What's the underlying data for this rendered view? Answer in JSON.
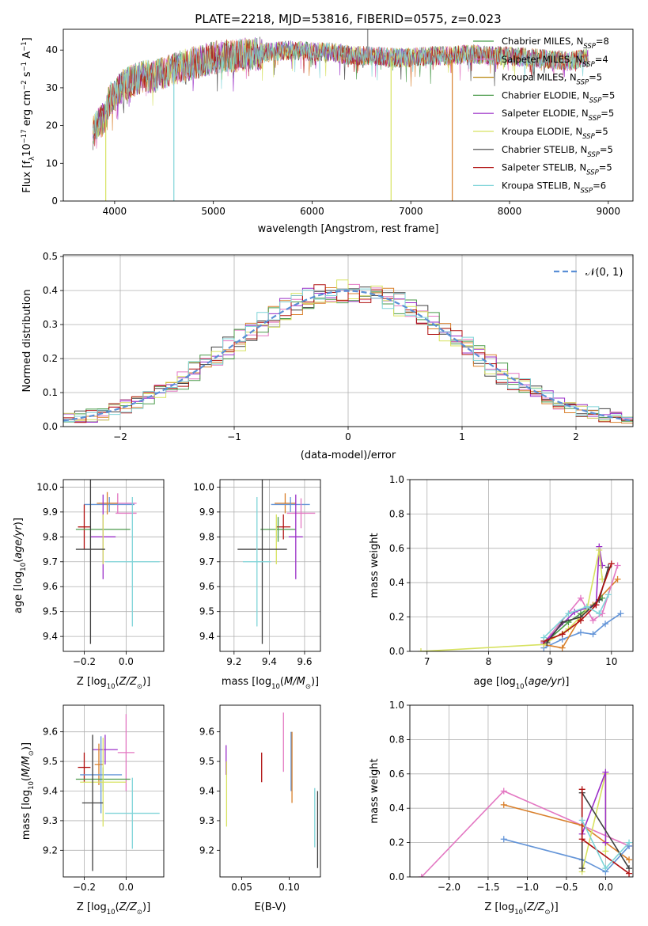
{
  "figure_title": "PLATE=2218, MJD=53816, FIBERID=0575, z=0.023",
  "palette": [
    "#7f7f7f",
    "#e377c2",
    "#d9802c",
    "#4a9a4a",
    "#9b30c8",
    "#d7e260",
    "#404040",
    "#b01010",
    "#7fd4d8",
    "#6495d8"
  ],
  "chart_data": [
    {
      "id": "spectrum",
      "type": "line",
      "xlabel": "wavelength [Angstrom, rest frame]",
      "ylabel": "Flux [f_λ10^-17 erg cm^-2 s^-1 A^-1]",
      "xlim": [
        3480,
        9250
      ],
      "ylim": [
        0,
        45.5
      ],
      "xticks": [
        4000,
        5000,
        6000,
        7000,
        8000,
        9000
      ],
      "yticks": [
        0,
        10,
        20,
        30,
        40
      ],
      "grid": false,
      "legend_position": "top-right",
      "legend": [
        {
          "label": "Chabrier MILES, N_SSP=8",
          "color": "#4a9a4a"
        },
        {
          "label": "Salpeter MILES, N_SSP=4",
          "color": "#e377c2"
        },
        {
          "label": "Kroupa MILES, N_SSP=5",
          "color": "#b8860b"
        },
        {
          "label": "Chabrier ELODIE, N_SSP=5",
          "color": "#4a9a4a"
        },
        {
          "label": "Salpeter ELODIE, N_SSP=5",
          "color": "#9b30c8"
        },
        {
          "label": "Kroupa ELODIE, N_SSP=5",
          "color": "#d7e260"
        },
        {
          "label": "Chabrier STELIB, N_SSP=5",
          "color": "#404040"
        },
        {
          "label": "Salpeter STELIB, N_SSP=5",
          "color": "#b01010"
        },
        {
          "label": "Kroupa STELIB, N_SSP=6",
          "color": "#7fd4d8"
        }
      ],
      "envelope": {
        "x": [
          3780,
          3850,
          3900,
          3950,
          4000,
          4100,
          4200,
          4300,
          4400,
          4500,
          4600,
          4800,
          5000,
          5200,
          5400,
          5600,
          5800,
          6000,
          6200,
          6400,
          6600,
          6800,
          7000,
          7200,
          7400,
          7600,
          7800,
          8000,
          8200,
          8400,
          8600,
          8800
        ],
        "y": [
          18,
          21,
          22,
          27,
          28,
          31,
          32,
          33,
          33,
          34,
          35,
          36.5,
          38,
          38.5,
          39,
          39.5,
          40,
          39.5,
          39.5,
          38.5,
          38.5,
          38,
          38,
          38.5,
          38.5,
          39,
          38.5,
          38.5,
          38,
          37.5,
          37,
          38
        ]
      },
      "dropouts": [
        {
          "x": 3910,
          "y": 0,
          "color": "#d7e260"
        },
        {
          "x": 4600,
          "y": 0,
          "color": "#7fd4d8"
        },
        {
          "x": 6800,
          "y": 0,
          "color": "#d7e260"
        },
        {
          "x": 7420,
          "y": 0,
          "color": "#d9802c"
        }
      ]
    },
    {
      "id": "residuals",
      "type": "histogram",
      "xlabel": "(data-model)/error",
      "ylabel": "Normed distribution",
      "xlim": [
        -2.5,
        2.5
      ],
      "ylim": [
        0,
        0.505
      ],
      "xticks": [
        -2,
        -1,
        0,
        1,
        2
      ],
      "yticks": [
        0.0,
        0.1,
        0.2,
        0.3,
        0.4,
        0.5
      ],
      "grid": true,
      "legend_position": "top-right",
      "legend": [
        {
          "label": "N(0,1)",
          "color": "#5b8fd6",
          "style": "dashed"
        }
      ],
      "normal_curve": {
        "mean": 0,
        "sigma": 1
      }
    },
    {
      "id": "age_vs_Z",
      "type": "errorbar",
      "xlabel": "Z [log10(Z/Z_sun)]",
      "ylabel": "age [log10(age/yr)]",
      "xlim": [
        -0.3,
        0.18
      ],
      "ylim": [
        9.34,
        10.03
      ],
      "xticks": [
        -0.2,
        0.0
      ],
      "xticklabels": [
        "−0.2",
        "0.0"
      ],
      "yticks": [
        9.4,
        9.5,
        9.6,
        9.7,
        9.8,
        9.9,
        10.0
      ],
      "grid": true,
      "points": [
        {
          "x": -0.04,
          "y": 9.935,
          "xerr": 0.09,
          "yerr": 0.04,
          "color": "#e377c2"
        },
        {
          "x": -0.08,
          "y": 9.93,
          "xerr": 0.12,
          "yerr": 0.03,
          "color": "#6495d8"
        },
        {
          "x": -0.09,
          "y": 9.935,
          "xerr": 0.05,
          "yerr": 0.045,
          "color": "#d9802c"
        },
        {
          "x": 0.0,
          "y": 9.895,
          "xerr": 0.05,
          "yerr": 0.0,
          "color": "#e377c2"
        },
        {
          "x": -0.2,
          "y": 9.84,
          "xerr": 0.03,
          "yerr": 0.09,
          "color": "#b01010"
        },
        {
          "x": -0.11,
          "y": 9.83,
          "xerr": 0.13,
          "yerr": 0.0,
          "color": "#4a9a4a"
        },
        {
          "x": -0.11,
          "y": 9.8,
          "xerr": 0.06,
          "yerr": 0.17,
          "color": "#9b30c8"
        },
        {
          "x": -0.11,
          "y": 9.79,
          "xerr": 0.0,
          "yerr": 0.1,
          "color": "#d7e260"
        },
        {
          "x": -0.17,
          "y": 9.75,
          "xerr": 0.07,
          "yerr": 0.38,
          "color": "#404040"
        },
        {
          "x": 0.03,
          "y": 9.7,
          "xerr": 0.13,
          "yerr": 0.26,
          "color": "#7fd4d8"
        }
      ]
    },
    {
      "id": "age_vs_mass",
      "type": "errorbar",
      "xlabel": "mass [log10(M/M_sun)]",
      "ylabel": "",
      "xlim": [
        9.12,
        9.69
      ],
      "ylim": [
        9.34,
        10.03
      ],
      "xticks": [
        9.2,
        9.4,
        9.6
      ],
      "yticks": [
        9.4,
        9.5,
        9.6,
        9.7,
        9.8,
        9.9,
        10.0
      ],
      "grid": true,
      "points": [
        {
          "x": 9.49,
          "y": 9.935,
          "xerr": 0.06,
          "yerr": 0.04,
          "color": "#d9802c"
        },
        {
          "x": 9.52,
          "y": 9.93,
          "xerr": 0.11,
          "yerr": 0.03,
          "color": "#6495d8"
        },
        {
          "x": 9.58,
          "y": 9.895,
          "xerr": 0.08,
          "yerr": 0.06,
          "color": "#e377c2"
        },
        {
          "x": 9.48,
          "y": 9.84,
          "xerr": 0.04,
          "yerr": 0.05,
          "color": "#b01010"
        },
        {
          "x": 9.45,
          "y": 9.83,
          "xerr": 0.1,
          "yerr": 0.05,
          "color": "#4a9a4a"
        },
        {
          "x": 9.55,
          "y": 9.8,
          "xerr": 0.04,
          "yerr": 0.17,
          "color": "#9b30c8"
        },
        {
          "x": 9.44,
          "y": 9.79,
          "xerr": 0.0,
          "yerr": 0.1,
          "color": "#d7e260"
        },
        {
          "x": 9.36,
          "y": 9.75,
          "xerr": 0.14,
          "yerr": 0.38,
          "color": "#404040"
        },
        {
          "x": 9.33,
          "y": 9.7,
          "xerr": 0.08,
          "yerr": 0.26,
          "color": "#7fd4d8"
        }
      ]
    },
    {
      "id": "weight_vs_age",
      "type": "line",
      "xlabel": "age [log10(age/yr)]",
      "ylabel": "mass weight",
      "xlim": [
        6.72,
        10.35
      ],
      "ylim": [
        0,
        1.0
      ],
      "xticks": [
        7,
        8,
        9,
        10
      ],
      "yticks": [
        0.0,
        0.2,
        0.4,
        0.6,
        0.8,
        1.0
      ],
      "grid": true,
      "series": [
        {
          "color": "#6495d8",
          "x": [
            8.9,
            9.2,
            9.5,
            9.7,
            9.9,
            10.15
          ],
          "y": [
            0.02,
            0.07,
            0.11,
            0.1,
            0.16,
            0.22
          ]
        },
        {
          "color": "#d9802c",
          "x": [
            8.9,
            9.2,
            9.5,
            9.7,
            10.1
          ],
          "y": [
            0.04,
            0.02,
            0.2,
            0.27,
            0.42
          ]
        },
        {
          "color": "#e377c2",
          "x": [
            8.9,
            9.5,
            9.7,
            9.85,
            10.1
          ],
          "y": [
            0.05,
            0.31,
            0.18,
            0.22,
            0.5
          ]
        },
        {
          "color": "#4a9a4a",
          "x": [
            8.95,
            9.3,
            9.5,
            9.85
          ],
          "y": [
            0.06,
            0.17,
            0.22,
            0.31
          ]
        },
        {
          "color": "#9b30c8",
          "x": [
            8.9,
            9.4,
            9.75,
            9.8,
            9.85
          ],
          "y": [
            0.05,
            0.23,
            0.27,
            0.61,
            0.5
          ]
        },
        {
          "color": "#d7e260",
          "x": [
            6.9,
            8.9,
            9.3,
            9.6,
            9.8,
            9.85
          ],
          "y": [
            0.0,
            0.04,
            0.13,
            0.24,
            0.59,
            0.42
          ]
        },
        {
          "color": "#404040",
          "x": [
            8.95,
            9.2,
            9.5,
            9.8,
            9.95
          ],
          "y": [
            0.05,
            0.17,
            0.2,
            0.3,
            0.49
          ]
        },
        {
          "color": "#b01010",
          "x": [
            8.9,
            9.2,
            9.5,
            9.75,
            10.0
          ],
          "y": [
            0.06,
            0.1,
            0.18,
            0.27,
            0.51
          ]
        },
        {
          "color": "#7fd4d8",
          "x": [
            8.9,
            9.3,
            9.6,
            9.8,
            9.95
          ],
          "y": [
            0.08,
            0.22,
            0.26,
            0.22,
            0.33
          ]
        }
      ]
    },
    {
      "id": "mass_vs_Z",
      "type": "errorbar",
      "xlabel": "Z [log10(Z/Z_sun)]",
      "ylabel": "mass [log10(M/M_sun)]",
      "xlim": [
        -0.3,
        0.18
      ],
      "ylim": [
        9.11,
        9.69
      ],
      "xticks": [
        -0.2,
        0.0
      ],
      "xticklabels": [
        "−0.2",
        "0.0"
      ],
      "yticks": [
        9.2,
        9.3,
        9.4,
        9.5,
        9.6
      ],
      "grid": true,
      "points": [
        {
          "x": 0.0,
          "y": 9.53,
          "xerr": 0.04,
          "yerr": 0.13,
          "color": "#e377c2"
        },
        {
          "x": -0.1,
          "y": 9.54,
          "xerr": 0.06,
          "yerr": 0.05,
          "color": "#9b30c8"
        },
        {
          "x": -0.13,
          "y": 9.49,
          "xerr": 0.02,
          "yerr": 0.07,
          "color": "#d9802c"
        },
        {
          "x": -0.2,
          "y": 9.48,
          "xerr": 0.03,
          "yerr": 0.05,
          "color": "#b01010"
        },
        {
          "x": -0.12,
          "y": 9.455,
          "xerr": 0.1,
          "yerr": 0.13,
          "color": "#6495d8"
        },
        {
          "x": -0.11,
          "y": 9.44,
          "xerr": 0.13,
          "yerr": 0.04,
          "color": "#4a9a4a"
        },
        {
          "x": -0.11,
          "y": 9.43,
          "xerr": 0.11,
          "yerr": 0.15,
          "color": "#d7e260"
        },
        {
          "x": -0.16,
          "y": 9.36,
          "xerr": 0.05,
          "yerr": 0.23,
          "color": "#404040"
        },
        {
          "x": 0.03,
          "y": 9.325,
          "xerr": 0.13,
          "yerr": 0.12,
          "color": "#7fd4d8"
        }
      ]
    },
    {
      "id": "mass_vs_EBV",
      "type": "errorbar",
      "xlabel": "E(B-V)",
      "ylabel": "",
      "xlim": [
        0.027,
        0.133
      ],
      "ylim": [
        9.11,
        9.69
      ],
      "xticks": [
        0.05,
        0.1
      ],
      "xticklabels": [
        "0.05",
        "0.10"
      ],
      "yticks": [
        9.2,
        9.3,
        9.4,
        9.5,
        9.6
      ],
      "grid": false,
      "points": [
        {
          "x": 0.094,
          "y": 9.565,
          "xerr": 0.0,
          "yerr": 0.1,
          "color": "#e377c2"
        },
        {
          "x": 0.102,
          "y": 9.5,
          "xerr": 0.0,
          "yerr": 0.1,
          "color": "#6495d8"
        },
        {
          "x": 0.103,
          "y": 9.48,
          "xerr": 0.0,
          "yerr": 0.12,
          "color": "#d9802c"
        },
        {
          "x": 0.0335,
          "y": 9.505,
          "xerr": 0.0,
          "yerr": 0.05,
          "color": "#9b30c8"
        },
        {
          "x": 0.071,
          "y": 9.48,
          "xerr": 0.0,
          "yerr": 0.05,
          "color": "#b01010"
        },
        {
          "x": 0.034,
          "y": 9.39,
          "xerr": 0.0,
          "yerr": 0.11,
          "color": "#d7e260"
        },
        {
          "x": 0.127,
          "y": 9.31,
          "xerr": 0.0,
          "yerr": 0.1,
          "color": "#7fd4d8"
        },
        {
          "x": 0.13,
          "y": 9.27,
          "xerr": 0.0,
          "yerr": 0.13,
          "color": "#404040"
        }
      ]
    },
    {
      "id": "weight_vs_Z",
      "type": "line",
      "xlabel": "Z [log10(Z/Z_sun)]",
      "ylabel": "mass weight",
      "xlim": [
        -2.5,
        0.35
      ],
      "ylim": [
        0,
        1.0
      ],
      "xticks": [
        -2.0,
        -1.5,
        -1.0,
        -0.5,
        0.0
      ],
      "xticklabels": [
        "−2.0",
        "−1.5",
        "−1.0",
        "−0.5",
        "0.0"
      ],
      "yticks": [
        0.0,
        0.2,
        0.4,
        0.6,
        0.8,
        1.0
      ],
      "grid": true,
      "series": [
        {
          "color": "#e377c2",
          "x": [
            -2.35,
            -1.3,
            0.3
          ],
          "y": [
            0.0,
            0.5,
            0.18
          ]
        },
        {
          "color": "#d9802c",
          "x": [
            -1.3,
            -0.3,
            0.3
          ],
          "y": [
            0.42,
            0.3,
            0.1
          ]
        },
        {
          "color": "#6495d8",
          "x": [
            -1.3,
            -0.3,
            0.0,
            0.3
          ],
          "y": [
            0.22,
            0.1,
            0.03,
            0.18
          ]
        },
        {
          "color": "#d7e260",
          "x": [
            -0.3,
            0.0,
            0.0
          ],
          "y": [
            0.03,
            0.6,
            0.15
          ]
        },
        {
          "color": "#9b30c8",
          "x": [
            -0.3,
            0.0,
            0.0
          ],
          "y": [
            0.25,
            0.61,
            0.2
          ]
        },
        {
          "color": "#404040",
          "x": [
            -0.3,
            -0.3,
            0.3
          ],
          "y": [
            0.05,
            0.49,
            0.05
          ]
        },
        {
          "color": "#b01010",
          "x": [
            -0.3,
            -0.3,
            0.3
          ],
          "y": [
            0.51,
            0.22,
            0.02
          ]
        },
        {
          "color": "#7fd4d8",
          "x": [
            -0.3,
            0.0,
            0.3
          ],
          "y": [
            0.33,
            0.05,
            0.2
          ]
        }
      ]
    }
  ]
}
